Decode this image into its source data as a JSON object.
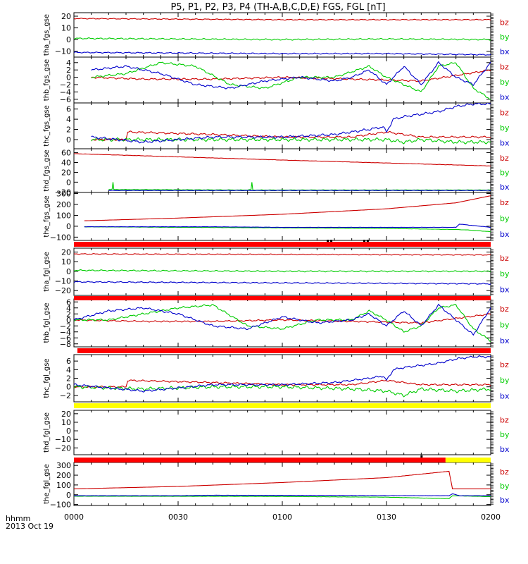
{
  "title": "P5, P1, P2, P3, P4 (TH-A,B,C,D,E) FGS, FGL [nT]",
  "time_axis": {
    "label_line1": "hhmm",
    "label_line2": "2013 Oct 19",
    "ticks": [
      "0000",
      "0030",
      "0100",
      "0130",
      "0200"
    ],
    "range_minutes": [
      0,
      120
    ]
  },
  "colors": {
    "bz": "#cc0000",
    "by": "#00cc00",
    "bx": "#0000cc",
    "flag_red": "#ff0000",
    "flag_yellow": "#ffff00"
  },
  "chart_data": [
    {
      "type": "line",
      "ylabel": "tha_fgs_gse",
      "ylim": [
        -15,
        23
      ],
      "yticks": [
        "20",
        "10",
        "0",
        "−10"
      ],
      "ytick_values": [
        20,
        10,
        0,
        -10
      ],
      "legend": [
        "bz",
        "by",
        "bx"
      ],
      "series": [
        {
          "name": "bz",
          "x": [
            0,
            60,
            120
          ],
          "y": [
            18,
            17,
            17
          ],
          "ripple": 0.4
        },
        {
          "name": "by",
          "x": [
            0,
            30,
            60,
            90,
            120
          ],
          "y": [
            1,
            0.5,
            0,
            0.5,
            0
          ],
          "ripple": 0.6
        },
        {
          "name": "bx",
          "x": [
            0,
            30,
            60,
            90,
            120
          ],
          "y": [
            -11,
            -11.5,
            -12,
            -12,
            -13
          ],
          "ripple": 0.5
        }
      ]
    },
    {
      "type": "line",
      "ylabel": "thb_fgs_gse",
      "ylim": [
        -7,
        5.5
      ],
      "yticks": [
        "4",
        "2",
        "0",
        "−2",
        "−4",
        "−6"
      ],
      "ytick_values": [
        4,
        2,
        0,
        -2,
        -4,
        -6
      ],
      "legend": [
        "bz",
        "by",
        "bx"
      ],
      "series": [
        {
          "name": "bz",
          "x": [
            5,
            20,
            40,
            60,
            80,
            100,
            110,
            120
          ],
          "y": [
            0,
            -0.5,
            -0.5,
            0,
            -0.5,
            -1,
            0.5,
            2
          ],
          "ripple": 0.25
        },
        {
          "name": "by",
          "x": [
            5,
            15,
            25,
            35,
            45,
            55,
            65,
            75,
            85,
            90,
            95,
            100,
            105,
            110,
            115,
            120
          ],
          "y": [
            0,
            1,
            4,
            3,
            -2,
            -3,
            0,
            0,
            3,
            0,
            -2,
            -4,
            3,
            4,
            -3,
            -6
          ],
          "ripple": 0.3
        },
        {
          "name": "bx",
          "x": [
            5,
            15,
            25,
            35,
            45,
            55,
            65,
            75,
            80,
            85,
            90,
            95,
            100,
            105,
            110,
            115,
            120
          ],
          "y": [
            2,
            3,
            1,
            -2,
            -3,
            -1,
            0,
            -1,
            0,
            2,
            -2,
            3,
            -2,
            4,
            0,
            -2,
            4
          ],
          "ripple": 0.3
        }
      ]
    },
    {
      "type": "line",
      "ylabel": "thc_fgs_gse",
      "ylim": [
        -1.8,
        7.2
      ],
      "yticks": [
        "6",
        "4",
        "2",
        "0"
      ],
      "ytick_values": [
        6,
        4,
        2,
        0
      ],
      "legend": [
        "bz",
        "by",
        "bx"
      ],
      "series": [
        {
          "name": "bz",
          "x": [
            5,
            15,
            15.5,
            40,
            60,
            80,
            90,
            95,
            100,
            110,
            120
          ],
          "y": [
            0,
            0,
            1.5,
            1,
            0.5,
            0.5,
            1.5,
            1,
            0.5,
            0.5,
            0.5
          ],
          "ripple": 0.2
        },
        {
          "name": "by",
          "x": [
            5,
            20,
            40,
            60,
            80,
            90,
            95,
            100,
            110,
            120
          ],
          "y": [
            0,
            0,
            0,
            0,
            0,
            0,
            -0.5,
            0,
            -0.5,
            -0.5
          ],
          "ripple": 0.35
        },
        {
          "name": "bx",
          "x": [
            5,
            20,
            40,
            60,
            75,
            85,
            89,
            90,
            92,
            95,
            100,
            105,
            110,
            115,
            120
          ],
          "y": [
            0.5,
            -0.5,
            0.5,
            0.5,
            1,
            2,
            2.5,
            1.5,
            4,
            4.5,
            5,
            5.5,
            6.5,
            7,
            7
          ],
          "ripple": 0.25
        }
      ]
    },
    {
      "type": "line",
      "ylabel": "thd_fgs_gse",
      "ylim": [
        -21,
        68
      ],
      "yticks": [
        "60",
        "40",
        "20",
        "0",
        "−20"
      ],
      "ytick_values": [
        60,
        40,
        20,
        0,
        -20
      ],
      "legend": [
        "bz",
        "by",
        "bx"
      ],
      "series": [
        {
          "name": "bz",
          "x": [
            0,
            60,
            120
          ],
          "y": [
            58,
            45,
            33
          ],
          "ripple": 0.3
        },
        {
          "name": "by",
          "x": [
            10,
            11,
            11.2,
            11.4,
            50,
            51,
            51.2,
            51.4,
            120
          ],
          "y": [
            -15,
            -14,
            5,
            -15,
            -16,
            -15,
            5,
            -16,
            -16
          ],
          "ripple": 0.4
        },
        {
          "name": "bx",
          "x": [
            10,
            120
          ],
          "y": [
            -17,
            -17
          ],
          "ripple": 0.4
        }
      ]
    },
    {
      "type": "line",
      "ylabel": "the_fgs_gse",
      "ylim": [
        -130,
        310
      ],
      "yticks": [
        "300",
        "200",
        "100",
        "0",
        "−100"
      ],
      "ytick_values": [
        300,
        200,
        100,
        0,
        -100
      ],
      "legend": [
        "bz",
        "by",
        "bx"
      ],
      "series": [
        {
          "name": "bz",
          "x": [
            3,
            30,
            60,
            90,
            110,
            120
          ],
          "y": [
            50,
            75,
            110,
            160,
            215,
            280
          ],
          "ripple": 0
        },
        {
          "name": "by",
          "x": [
            3,
            60,
            90,
            110,
            114,
            120
          ],
          "y": [
            -5,
            -15,
            -20,
            -30,
            -35,
            -50
          ],
          "ripple": 1
        },
        {
          "name": "bx",
          "x": [
            3,
            40,
            60,
            110,
            111,
            120
          ],
          "y": [
            -5,
            -5,
            -10,
            -10,
            20,
            -10
          ],
          "ripple": 1
        }
      ]
    },
    {
      "type": "line",
      "ylabel": "tha_fgl_gse",
      "ylim": [
        -25,
        24
      ],
      "yticks": [
        "20",
        "10",
        "0",
        "−10",
        "−20"
      ],
      "ytick_values": [
        20,
        10,
        0,
        -10,
        -20
      ],
      "legend": [
        "bz",
        "by",
        "bx"
      ],
      "series": [
        {
          "name": "bz",
          "x": [
            0,
            60,
            120
          ],
          "y": [
            18,
            17.5,
            17
          ],
          "ripple": 0.5
        },
        {
          "name": "by",
          "x": [
            0,
            60,
            120
          ],
          "y": [
            1,
            0,
            0
          ],
          "ripple": 0.7
        },
        {
          "name": "bx",
          "x": [
            0,
            60,
            120
          ],
          "y": [
            -11,
            -12,
            -13
          ],
          "ripple": 0.6
        }
      ]
    },
    {
      "type": "line",
      "ylabel": "thb_fgl_gse",
      "ylim": [
        -9,
        7
      ],
      "yticks": [
        "6",
        "4",
        "2",
        "0",
        "−2",
        "−4",
        "−6",
        "−8"
      ],
      "ytick_values": [
        6,
        4,
        2,
        0,
        -2,
        -4,
        -6,
        -8
      ],
      "legend": [
        "bz",
        "by",
        "bx"
      ],
      "series": [
        {
          "name": "bz",
          "x": [
            0,
            20,
            40,
            60,
            80,
            100,
            110,
            120
          ],
          "y": [
            0,
            -0.5,
            -0.5,
            0,
            -0.5,
            -1,
            0.5,
            2
          ],
          "ripple": 0.25
        },
        {
          "name": "by",
          "x": [
            0,
            10,
            20,
            30,
            40,
            50,
            60,
            70,
            80,
            85,
            90,
            95,
            100,
            105,
            110,
            115,
            120
          ],
          "y": [
            0,
            0,
            2,
            4,
            5,
            -2,
            -3,
            0,
            0,
            3,
            0,
            -4,
            -2,
            4,
            5,
            -3,
            -7
          ],
          "ripple": 0.35
        },
        {
          "name": "bx",
          "x": [
            0,
            10,
            20,
            30,
            40,
            50,
            60,
            70,
            80,
            85,
            90,
            95,
            100,
            105,
            110,
            115,
            120
          ],
          "y": [
            0,
            3,
            4,
            2,
            -2,
            -3,
            1,
            -1,
            0,
            2,
            -2,
            3,
            -2,
            5,
            0,
            -5,
            4
          ],
          "ripple": 0.35
        }
      ]
    },
    {
      "type": "line",
      "ylabel": "thc_fgl_gse",
      "ylim": [
        -3.5,
        7.5
      ],
      "yticks": [
        "6",
        "4",
        "2",
        "0",
        "−2"
      ],
      "ytick_values": [
        6,
        4,
        2,
        0,
        -2
      ],
      "legend": [
        "bz",
        "by",
        "bx"
      ],
      "series": [
        {
          "name": "bz",
          "x": [
            0,
            15,
            15.5,
            40,
            60,
            80,
            90,
            95,
            100,
            110,
            120
          ],
          "y": [
            0,
            0,
            1.5,
            1,
            0.5,
            0.5,
            1.5,
            1,
            0.5,
            0.5,
            0.5
          ],
          "ripple": 0.2
        },
        {
          "name": "by",
          "x": [
            0,
            20,
            40,
            60,
            80,
            90,
            95,
            100,
            110,
            120
          ],
          "y": [
            0,
            -0.5,
            0,
            0,
            -0.5,
            -1,
            -2,
            -0.5,
            -1,
            -0.5
          ],
          "ripple": 0.4
        },
        {
          "name": "bx",
          "x": [
            0,
            20,
            40,
            60,
            75,
            85,
            89,
            90,
            92,
            95,
            100,
            105,
            110,
            115,
            120
          ],
          "y": [
            0.5,
            -1,
            0.5,
            0.5,
            1,
            2,
            2.5,
            1.5,
            4,
            4.5,
            5,
            5.5,
            6.5,
            7,
            7
          ],
          "ripple": 0.25
        }
      ]
    },
    {
      "type": "line",
      "ylabel": "thd_fgl_gse",
      "ylim": [
        -28,
        24
      ],
      "yticks": [
        "20",
        "10",
        "0",
        "−10",
        "−20"
      ],
      "ytick_values": [
        20,
        10,
        0,
        -10,
        -20
      ],
      "legend": [
        "bz",
        "by",
        "bx"
      ],
      "series": []
    },
    {
      "type": "line",
      "ylabel": "the_fgl_gse",
      "ylim": [
        -110,
        330
      ],
      "yticks": [
        "300",
        "200",
        "100",
        "0",
        "−100"
      ],
      "ytick_values": [
        300,
        200,
        100,
        0,
        -100
      ],
      "legend": [
        "bz",
        "by",
        "bx"
      ],
      "series": [
        {
          "name": "bz",
          "x": [
            0,
            30,
            60,
            90,
            108,
            109,
            120
          ],
          "y": [
            60,
            85,
            125,
            175,
            240,
            60,
            60
          ],
          "ripple": 0
        },
        {
          "name": "by",
          "x": [
            0,
            60,
            90,
            108,
            109,
            120
          ],
          "y": [
            -15,
            -18,
            -25,
            -40,
            -10,
            -20
          ],
          "ripple": 1
        },
        {
          "name": "bx",
          "x": [
            0,
            30,
            40,
            108,
            109,
            111,
            120
          ],
          "y": [
            -10,
            -10,
            -5,
            -10,
            10,
            -10,
            -10
          ],
          "ripple": 1
        }
      ]
    }
  ],
  "flag_bars": [
    {
      "after_panel": 4,
      "segments": [
        {
          "color": "red",
          "from": 0,
          "to": 120
        }
      ],
      "ticks_minutes": [
        73,
        74,
        83.5,
        84.5
      ]
    },
    {
      "after_panel": 5,
      "segments": [
        {
          "color": "red",
          "from": 0,
          "to": 120
        }
      ],
      "ticks_minutes": []
    },
    {
      "after_panel": 6,
      "segments": [
        {
          "color": "red",
          "from": 1,
          "to": 120
        }
      ],
      "ticks_minutes": []
    },
    {
      "after_panel": 7,
      "segments": [
        {
          "color": "yellow",
          "from": 0,
          "to": 120
        }
      ],
      "ticks_minutes": []
    },
    {
      "after_panel": 8,
      "segments": [
        {
          "color": "red",
          "from": 0,
          "to": 107
        },
        {
          "color": "yellow",
          "from": 107,
          "to": 120
        }
      ],
      "ticks_minutes": [
        100
      ]
    }
  ]
}
